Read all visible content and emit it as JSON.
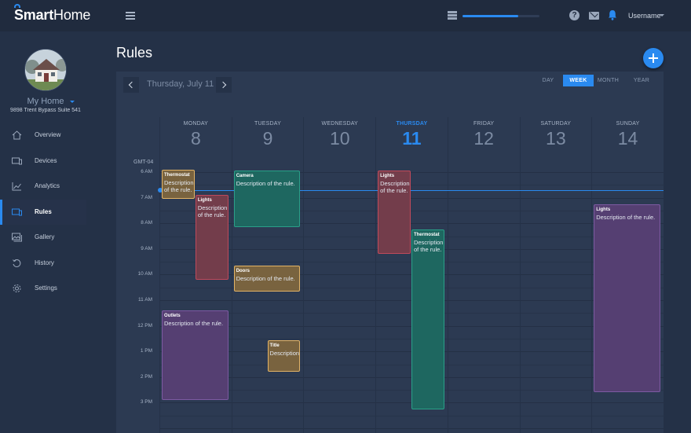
{
  "app": {
    "logo_prefix": "Smart",
    "logo_suffix": "Home",
    "username": "Username",
    "upload_progress": 0.72
  },
  "sidebar": {
    "home_name": "My Home",
    "address": "9898 Trent Bypass Suite 541",
    "items": [
      {
        "label": "Overview",
        "icon": "home-icon",
        "active": false
      },
      {
        "label": "Devices",
        "icon": "devices-icon",
        "active": false
      },
      {
        "label": "Analytics",
        "icon": "analytics-icon",
        "active": false
      },
      {
        "label": "Rules",
        "icon": "rules-icon",
        "active": true
      },
      {
        "label": "Gallery",
        "icon": "gallery-icon",
        "active": false
      },
      {
        "label": "History",
        "icon": "history-icon",
        "active": false
      },
      {
        "label": "Settings",
        "icon": "gear-icon",
        "active": false
      }
    ]
  },
  "page": {
    "title": "Rules"
  },
  "calendar": {
    "current_date": "Thursday, July 11",
    "views": [
      "DAY",
      "WEEK",
      "MONTH",
      "YEAR"
    ],
    "active_view": "WEEK",
    "timezone": "GMT-04",
    "days": [
      {
        "name": "MONDAY",
        "num": "8",
        "today": false
      },
      {
        "name": "TUESDAY",
        "num": "9",
        "today": false
      },
      {
        "name": "WEDNESDAY",
        "num": "10",
        "today": false
      },
      {
        "name": "THURSDAY",
        "num": "11",
        "today": true
      },
      {
        "name": "FRIDAY",
        "num": "12",
        "today": false
      },
      {
        "name": "SATURDAY",
        "num": "13",
        "today": false
      },
      {
        "name": "SUNDAY",
        "num": "14",
        "today": false
      }
    ],
    "hours": [
      "6 AM",
      "7 AM",
      "8 AM",
      "9 AM",
      "10 AM",
      "11 AM",
      "12 PM",
      "1 PM",
      "2 PM",
      "3 PM"
    ],
    "first_hour": 6,
    "now_hour": 6.7,
    "events": [
      {
        "day": 0,
        "col": 0,
        "cols": 2,
        "start": 5.9,
        "end": 7.05,
        "title": "Thermostat",
        "desc": "Description of the rule.",
        "color": "orange"
      },
      {
        "day": 0,
        "col": 1,
        "cols": 2,
        "start": 6.9,
        "end": 10.2,
        "title": "Lights",
        "desc": "Description of the rule.",
        "color": "red"
      },
      {
        "day": 0,
        "col": 0,
        "cols": 1,
        "start": 11.4,
        "end": 14.9,
        "title": "Outlets",
        "desc": "Description of the rule.",
        "color": "purple"
      },
      {
        "day": 1,
        "col": 0,
        "cols": 1,
        "start": 5.95,
        "end": 8.15,
        "title": "Camera",
        "desc": "Description of the rule.",
        "color": "green"
      },
      {
        "day": 1,
        "col": 0,
        "cols": 1,
        "start": 9.65,
        "end": 10.65,
        "title": "Doors",
        "desc": "Description of the rule.",
        "color": "orange"
      },
      {
        "day": 1,
        "col": 1,
        "cols": 2,
        "start": 12.55,
        "end": 13.8,
        "title": "Title",
        "desc": "Description",
        "color": "orange"
      },
      {
        "day": 3,
        "col": 0,
        "cols": 2,
        "start": 5.95,
        "end": 9.2,
        "title": "Lights",
        "desc": "Description of the rule.",
        "color": "red"
      },
      {
        "day": 3,
        "col": 1,
        "cols": 2,
        "start": 8.25,
        "end": 15.25,
        "title": "Thermostat",
        "desc": "Description of the rule.",
        "color": "green"
      },
      {
        "day": 6,
        "col": 0,
        "cols": 1,
        "start": 7.25,
        "end": 14.6,
        "title": "Lights",
        "desc": "Description of the rule.",
        "color": "purple"
      }
    ]
  },
  "colors": {
    "accent": "#2a8af0",
    "background": "#243147",
    "calendar_bg": "#2c3a52"
  }
}
